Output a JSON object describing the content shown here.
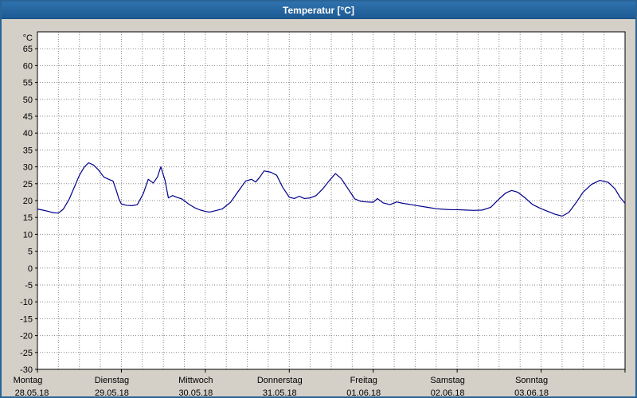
{
  "window": {
    "title": "Temperatur [°C]"
  },
  "chart_data": {
    "type": "line",
    "title": "Temperatur [°C]",
    "xlabel": "",
    "ylabel": "°C",
    "ylim": [
      -30,
      70
    ],
    "ytick_step": 5,
    "ytick_label_min": -30,
    "ytick_label_max": 65,
    "grid": "dotted",
    "legend_position": "none",
    "plot_bg": "#ffffff",
    "grid_color": "#8a8a8a",
    "axis_color": "#000000",
    "days": [
      {
        "name": "Montag",
        "date": "28.05.18"
      },
      {
        "name": "Dienstag",
        "date": "29.05.18"
      },
      {
        "name": "Mittwoch",
        "date": "30.05.18"
      },
      {
        "name": "Donnerstag",
        "date": "31.05.18"
      },
      {
        "name": "Freitag",
        "date": "01.06.18"
      },
      {
        "name": "Samstag",
        "date": "02.06.18"
      },
      {
        "name": "Sonntag",
        "date": "03.06.18"
      }
    ],
    "series": [
      {
        "name": "Temperatur",
        "color": "#00008b",
        "x": [
          0.0,
          0.06,
          0.13,
          0.19,
          0.25,
          0.31,
          0.38,
          0.44,
          0.5,
          0.56,
          0.61,
          0.67,
          0.73,
          0.79,
          0.85,
          0.9,
          0.94,
          0.97,
          1.0,
          1.06,
          1.13,
          1.19,
          1.26,
          1.32,
          1.38,
          1.43,
          1.47,
          1.52,
          1.56,
          1.61,
          1.66,
          1.72,
          1.8,
          1.88,
          1.94,
          2.0,
          2.05,
          2.12,
          2.2,
          2.3,
          2.4,
          2.48,
          2.55,
          2.6,
          2.65,
          2.7,
          2.78,
          2.85,
          2.92,
          3.0,
          3.06,
          3.12,
          3.18,
          3.25,
          3.32,
          3.4,
          3.48,
          3.55,
          3.62,
          3.7,
          3.78,
          3.85,
          3.92,
          4.0,
          4.05,
          4.12,
          4.2,
          4.28,
          4.35,
          4.45,
          4.55,
          4.65,
          4.75,
          4.85,
          4.93,
          5.0,
          5.1,
          5.2,
          5.3,
          5.4,
          5.5,
          5.58,
          5.65,
          5.72,
          5.8,
          5.9,
          6.0,
          6.08,
          6.16,
          6.25,
          6.33,
          6.42,
          6.5,
          6.6,
          6.7,
          6.8,
          6.88,
          6.94,
          7.0
        ],
        "y": [
          17.5,
          17.2,
          16.8,
          16.4,
          16.3,
          17.5,
          20.5,
          24.0,
          27.5,
          30.0,
          31.2,
          30.5,
          29.0,
          27.0,
          26.3,
          25.8,
          23.0,
          20.5,
          19.0,
          18.6,
          18.5,
          18.8,
          22.0,
          26.3,
          25.2,
          27.0,
          30.0,
          26.0,
          20.8,
          21.5,
          21.0,
          20.5,
          19.0,
          17.8,
          17.2,
          16.8,
          16.6,
          17.0,
          17.5,
          19.5,
          23.0,
          25.8,
          26.3,
          25.5,
          27.0,
          28.8,
          28.4,
          27.5,
          24.0,
          21.0,
          20.6,
          21.3,
          20.6,
          20.8,
          21.5,
          23.5,
          26.0,
          28.0,
          26.5,
          23.5,
          20.5,
          19.8,
          19.6,
          19.5,
          20.6,
          19.3,
          18.8,
          19.6,
          19.2,
          18.8,
          18.4,
          18.0,
          17.6,
          17.4,
          17.3,
          17.3,
          17.2,
          17.1,
          17.2,
          18.0,
          20.5,
          22.3,
          23.0,
          22.5,
          21.0,
          18.8,
          17.6,
          16.8,
          16.0,
          15.4,
          16.5,
          19.5,
          22.5,
          24.8,
          26.0,
          25.4,
          23.5,
          21.0,
          19.2
        ]
      }
    ]
  }
}
